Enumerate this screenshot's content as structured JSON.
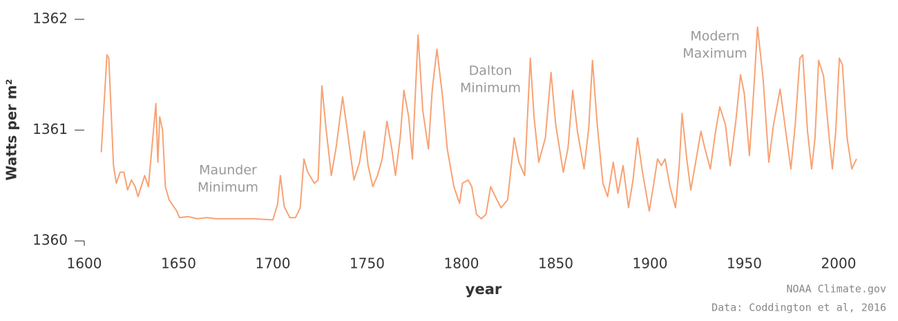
{
  "chart_data": {
    "type": "line",
    "ylabel": "Watts per m²",
    "xlabel": "year",
    "annotations": [
      [
        "Maunder",
        "Minimum"
      ],
      [
        "Dalton",
        "Minimum"
      ],
      [
        "Modern",
        "Maximum"
      ]
    ],
    "credits": [
      "NOAA Climate.gov",
      "Data: Coddington et al, 2016"
    ],
    "xlim": [
      1600,
      2013
    ],
    "ylim": [
      1360,
      1362
    ],
    "xticks": [
      1600,
      1650,
      1700,
      1750,
      1800,
      1850,
      1900,
      1950,
      2000
    ],
    "yticks": [
      1360,
      1361,
      1362
    ],
    "grid": false,
    "series": [
      {
        "color": "#f7a273",
        "x": [
          1609,
          1612,
          1613,
          1615.5,
          1617,
          1619,
          1621,
          1623,
          1625,
          1627,
          1628.5,
          1632,
          1634,
          1638,
          1639,
          1640,
          1641.5,
          1643,
          1645,
          1649,
          1650.5,
          1655,
          1660,
          1665,
          1670,
          1680,
          1690,
          1700,
          1702.5,
          1704,
          1706,
          1709,
          1712,
          1714.5,
          1716.5,
          1718.5,
          1722,
          1724,
          1726,
          1728,
          1731,
          1733.5,
          1737,
          1740,
          1743,
          1746,
          1748.5,
          1750.5,
          1753,
          1755.5,
          1758,
          1760.5,
          1763,
          1765,
          1767.5,
          1769.5,
          1772,
          1774,
          1777,
          1779.5,
          1782.5,
          1784.5,
          1787,
          1790,
          1792.5,
          1796,
          1799,
          1800.5,
          1803.5,
          1805.5,
          1808,
          1810.5,
          1813,
          1815.5,
          1818,
          1821,
          1824.5,
          1828,
          1830.5,
          1833.5,
          1836.5,
          1838.5,
          1841,
          1844.5,
          1847.5,
          1850,
          1854,
          1856.5,
          1859,
          1861.5,
          1865,
          1867.5,
          1869.5,
          1872,
          1875,
          1877.5,
          1880.5,
          1883,
          1885.7,
          1888.6,
          1891,
          1893.4,
          1896,
          1899.6,
          1902,
          1904,
          1906,
          1908,
          1910.6,
          1913.5,
          1915.5,
          1917,
          1919.5,
          1921.6,
          1924.5,
          1927,
          1929,
          1932,
          1934.5,
          1937,
          1940,
          1942.5,
          1945.5,
          1948,
          1950,
          1952.7,
          1955,
          1957,
          1960,
          1963,
          1965.5,
          1969,
          1971.5,
          1974.7,
          1977,
          1979.5,
          1981,
          1983.5,
          1985.7,
          1987.5,
          1989.4,
          1992,
          1995,
          1996.7,
          1998.5,
          2000.4,
          2002,
          2004.5,
          2007,
          2009.5
        ],
        "values": [
          1360.8,
          1361.68,
          1361.65,
          1360.68,
          1360.52,
          1360.62,
          1360.62,
          1360.46,
          1360.55,
          1360.49,
          1360.4,
          1360.59,
          1360.49,
          1361.24,
          1360.71,
          1361.12,
          1361.0,
          1360.49,
          1360.37,
          1360.27,
          1360.21,
          1360.22,
          1360.2,
          1360.21,
          1360.2,
          1360.2,
          1360.2,
          1360.19,
          1360.33,
          1360.59,
          1360.31,
          1360.21,
          1360.21,
          1360.3,
          1360.74,
          1360.62,
          1360.52,
          1360.55,
          1361.4,
          1361.05,
          1360.59,
          1360.84,
          1361.3,
          1360.93,
          1360.55,
          1360.71,
          1360.99,
          1360.68,
          1360.49,
          1360.59,
          1360.74,
          1361.08,
          1360.84,
          1360.59,
          1360.93,
          1361.36,
          1361.12,
          1360.74,
          1361.86,
          1361.18,
          1360.83,
          1361.36,
          1361.73,
          1361.3,
          1360.83,
          1360.49,
          1360.34,
          1360.52,
          1360.55,
          1360.49,
          1360.24,
          1360.2,
          1360.24,
          1360.49,
          1360.4,
          1360.3,
          1360.37,
          1360.93,
          1360.71,
          1360.59,
          1361.65,
          1361.12,
          1360.71,
          1360.93,
          1361.52,
          1361.05,
          1360.62,
          1360.84,
          1361.36,
          1360.99,
          1360.65,
          1361.02,
          1361.63,
          1361.05,
          1360.52,
          1360.4,
          1360.71,
          1360.43,
          1360.68,
          1360.3,
          1360.55,
          1360.93,
          1360.62,
          1360.27,
          1360.52,
          1360.74,
          1360.68,
          1360.74,
          1360.49,
          1360.3,
          1360.68,
          1361.15,
          1360.74,
          1360.46,
          1360.74,
          1360.99,
          1360.84,
          1360.65,
          1360.96,
          1361.21,
          1361.05,
          1360.68,
          1361.08,
          1361.5,
          1361.33,
          1360.77,
          1361.36,
          1361.93,
          1361.46,
          1360.71,
          1361.05,
          1361.37,
          1361.05,
          1360.65,
          1361.05,
          1361.65,
          1361.68,
          1360.99,
          1360.65,
          1360.93,
          1361.63,
          1361.49,
          1360.93,
          1360.65,
          1360.99,
          1361.65,
          1361.59,
          1360.93,
          1360.65,
          1360.74
        ]
      }
    ]
  }
}
